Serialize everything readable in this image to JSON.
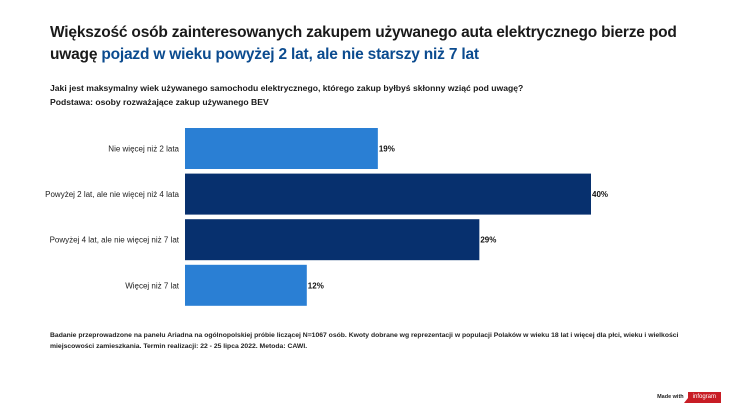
{
  "title": {
    "part1": "Większość osób zainteresowanych zakupem używanego auta elektrycznego bierze pod uwagę ",
    "part2": "pojazd w wieku powyżej 2 lat, ale nie starszy niż 7 lat"
  },
  "question": {
    "line1": "Jaki jest maksymalny wiek używanego samochodu elektrycznego, którego zakup byłbyś skłonny wziąć pod uwagę?",
    "line2": "Podstawa: osoby rozważające zakup używanego BEV"
  },
  "chart_data": {
    "type": "bar",
    "orientation": "horizontal",
    "categories": [
      "Nie więcej niż 2 lata",
      "Powyżej 2 lat, ale nie więcej niż 4 lata",
      "Powyżej 4 lat, ale nie więcej niż 7 lat",
      "Więcej niż 7 lat"
    ],
    "values": [
      19,
      40,
      29,
      12
    ],
    "value_labels": [
      "19%",
      "40%",
      "29%",
      "12%"
    ],
    "bar_colors": [
      "#2a7fd4",
      "#07306e",
      "#07306e",
      "#2a7fd4"
    ],
    "xlim": [
      0,
      40
    ],
    "grid": false,
    "legend": "none",
    "title": "",
    "xlabel": "",
    "ylabel": ""
  },
  "footnote": "Badanie przeprowadzone na panelu Ariadna na ogólnopolskiej próbie liczącej N=1067 osób. Kwoty dobrane wg reprezentacji w populacji Polaków w wieku 18 lat i więcej dla płci, wieku i wielkości miejscowości zamieszkania. Termin realizacji:  22 - 25 lipca 2022. Metoda: CAWI.",
  "branding": {
    "made_with": "Made with",
    "brand": "infogram"
  }
}
